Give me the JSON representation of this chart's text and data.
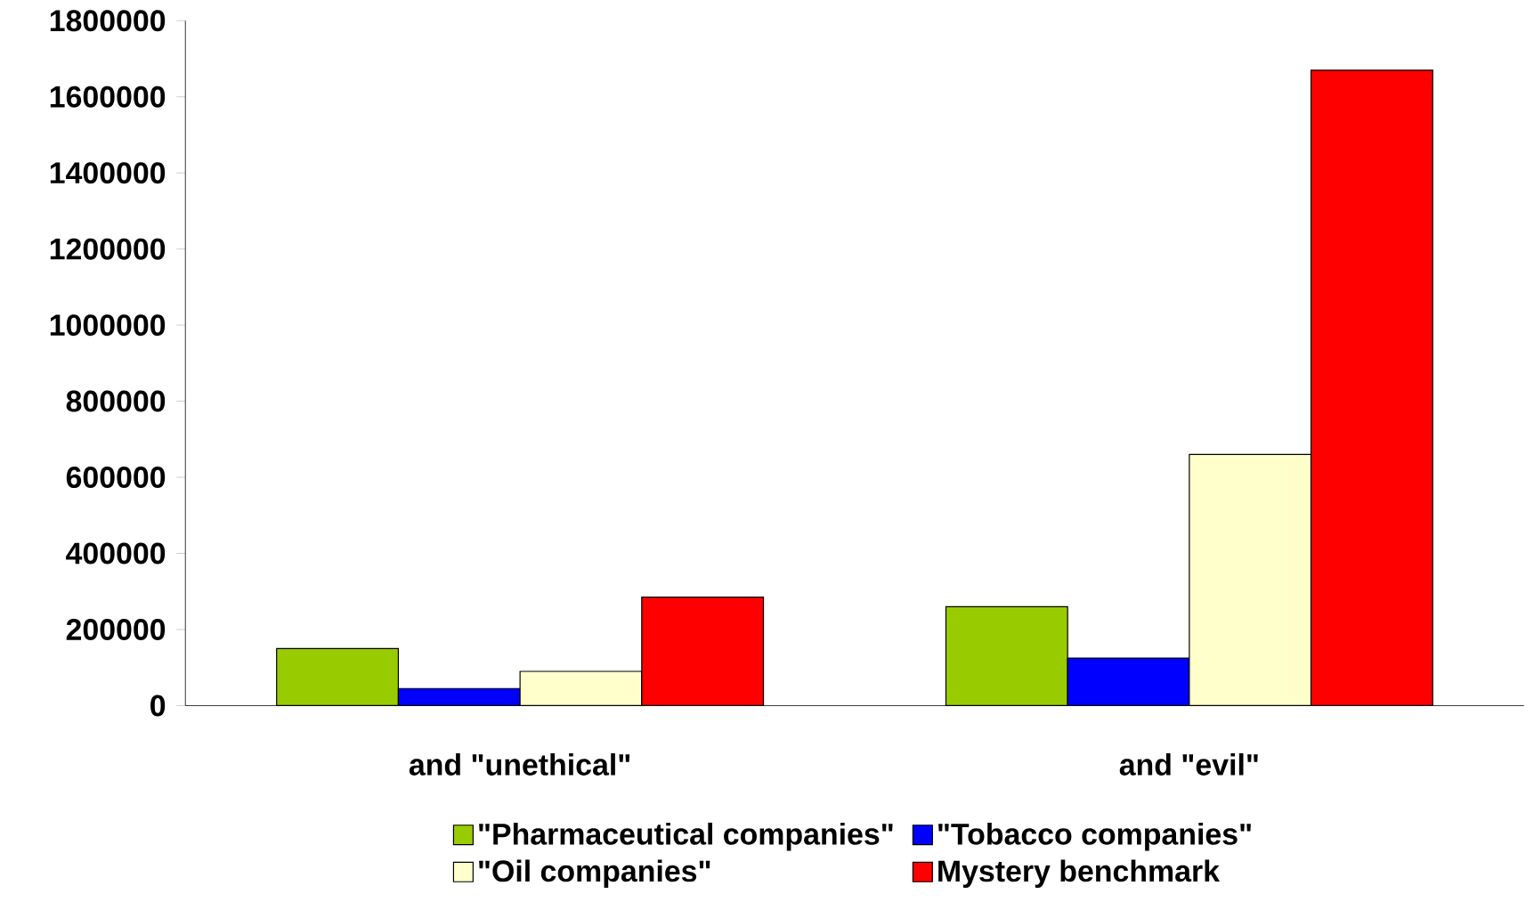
{
  "chart_data": {
    "type": "bar",
    "categories": [
      "and \"unethical\"",
      "and \"evil\""
    ],
    "series": [
      {
        "name": "\"Pharmaceutical companies\"",
        "color": "#99cc00",
        "values": [
          150000,
          260000
        ]
      },
      {
        "name": "\"Tobacco companies\"",
        "color": "#0000ff",
        "values": [
          45000,
          125000
        ]
      },
      {
        "name": "\"Oil companies\"",
        "color": "#ffffcc",
        "values": [
          90000,
          660000
        ]
      },
      {
        "name": "Mystery benchmark",
        "color": "#ff0000",
        "values": [
          285000,
          1670000
        ]
      }
    ],
    "ylim": [
      0,
      1800000
    ],
    "yticks": [
      0,
      200000,
      400000,
      600000,
      800000,
      1000000,
      1200000,
      1400000,
      1600000,
      1800000
    ],
    "grid": false,
    "legend": "bottom"
  }
}
